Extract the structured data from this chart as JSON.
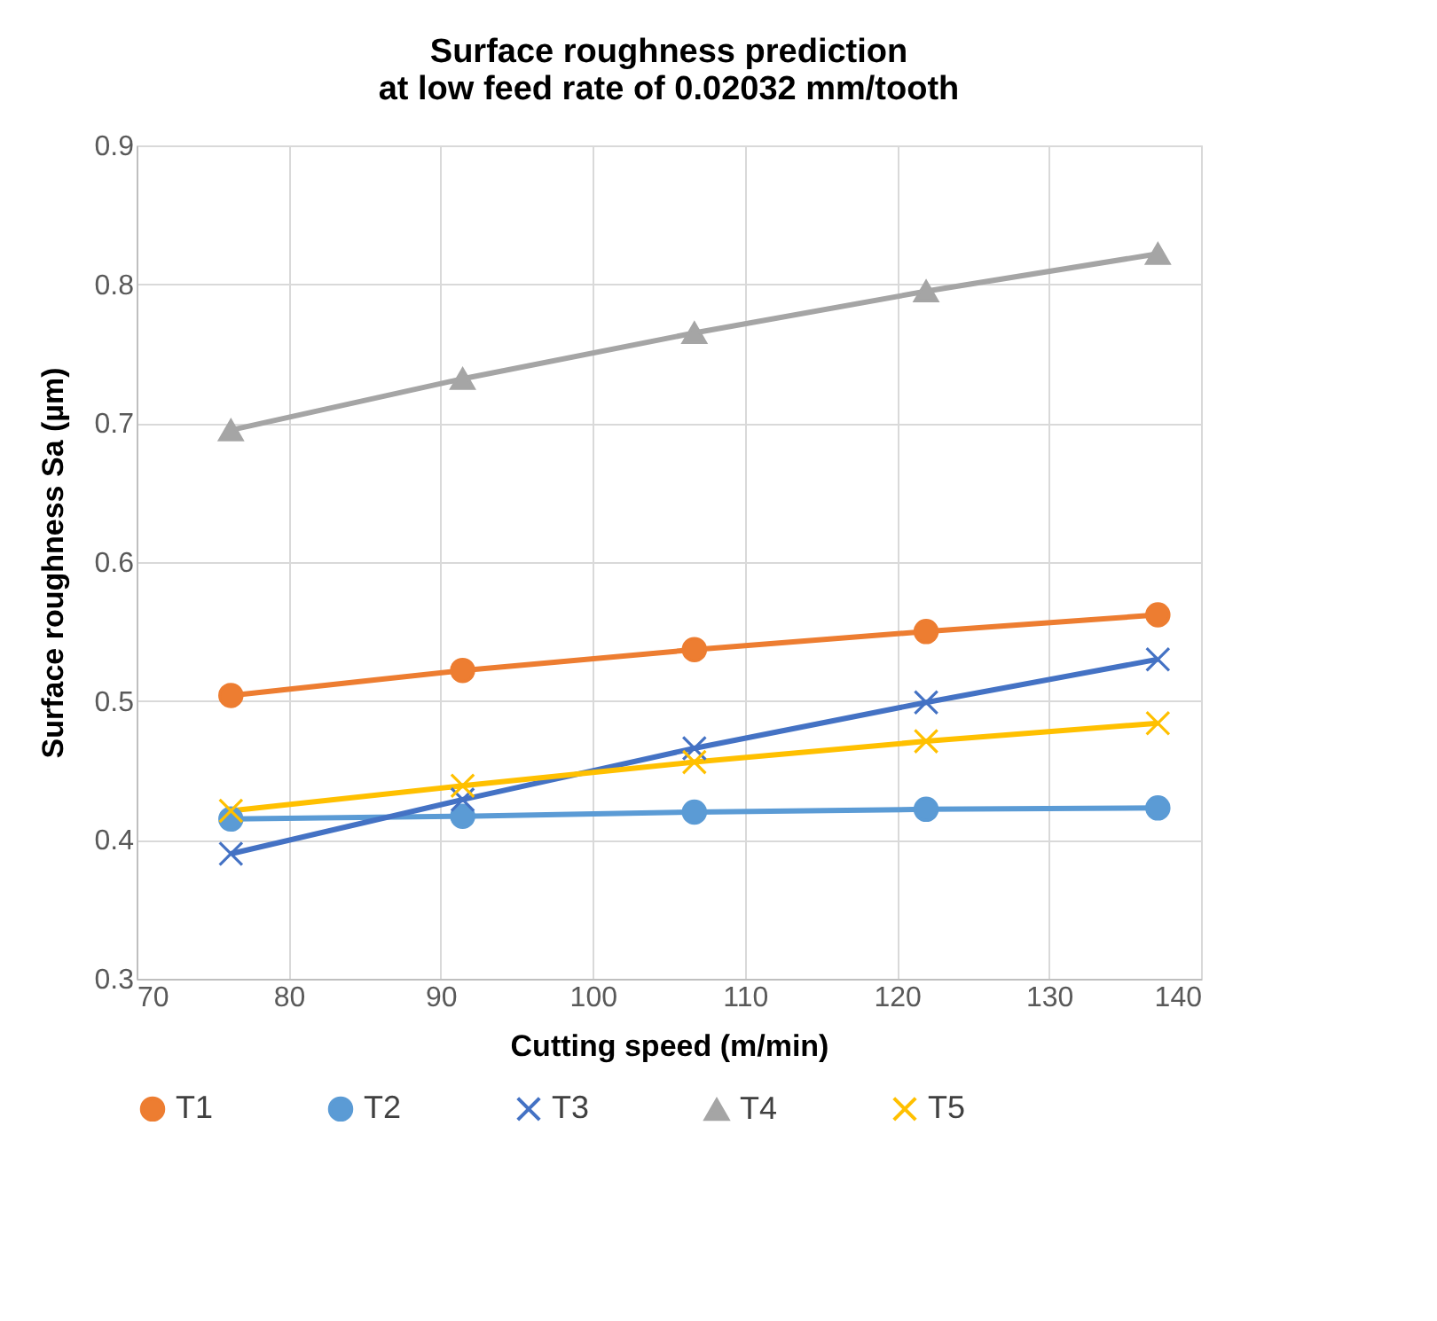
{
  "chart_data": {
    "type": "line",
    "title": "Surface roughness prediction\nat low feed rate of 0.02032 mm/tooth",
    "xlabel": "Cutting speed (m/min)",
    "ylabel": "Surface roughness Sa (µm)",
    "x": [
      76.2,
      91.44,
      106.68,
      121.92,
      137.16
    ],
    "series": [
      {
        "name": "T1",
        "color": "#ed7d31",
        "marker": "circle",
        "values": [
          0.504,
          0.522,
          0.537,
          0.55,
          0.562
        ]
      },
      {
        "name": "T2",
        "color": "#5b9bd5",
        "marker": "circle",
        "values": [
          0.415,
          0.417,
          0.42,
          0.422,
          0.423
        ]
      },
      {
        "name": "T3",
        "color": "#4472c4",
        "marker": "cross",
        "values": [
          0.39,
          0.429,
          0.466,
          0.499,
          0.53
        ]
      },
      {
        "name": "T4",
        "color": "#a5a5a5",
        "marker": "triangle",
        "values": [
          0.695,
          0.732,
          0.765,
          0.795,
          0.822
        ]
      },
      {
        "name": "T5",
        "color": "#ffc000",
        "marker": "cross",
        "values": [
          0.421,
          0.439,
          0.456,
          0.471,
          0.484
        ]
      }
    ],
    "xlim": [
      70,
      140
    ],
    "xticks": [
      70,
      80,
      90,
      100,
      110,
      120,
      130,
      140
    ],
    "ylim": [
      0.3,
      0.9
    ],
    "yticks": [
      0.3,
      0.4,
      0.5,
      0.6,
      0.7,
      0.8,
      0.9
    ],
    "grid": true,
    "legend": "bottom",
    "line_style": "solid"
  }
}
